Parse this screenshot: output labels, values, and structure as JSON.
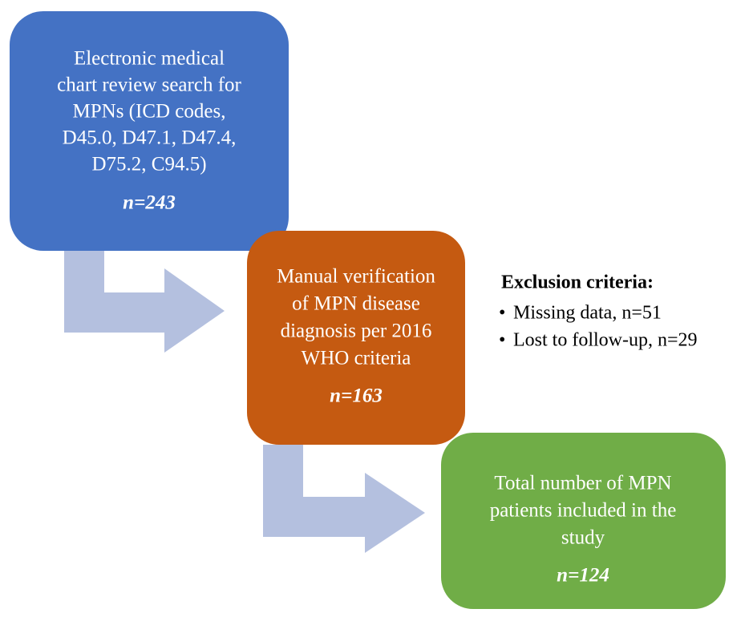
{
  "nodes": [
    {
      "label": [
        "Electronic medical",
        "chart review search for",
        "MPNs (ICD codes,",
        "D45.0, D47.1, D47.4,",
        "D75.2, C94.5)"
      ],
      "n": "n=243"
    },
    {
      "label": [
        "Manual verification",
        "of MPN disease",
        "diagnosis per 2016",
        "WHO criteria"
      ],
      "n": "n=163"
    },
    {
      "label": [
        "Total number of MPN",
        "patients included in the",
        "study"
      ],
      "n": "n=124"
    }
  ],
  "exclusion": {
    "title": "Exclusion criteria:",
    "items": [
      "Missing data, n=51",
      "Lost to follow-up, n=29"
    ]
  }
}
